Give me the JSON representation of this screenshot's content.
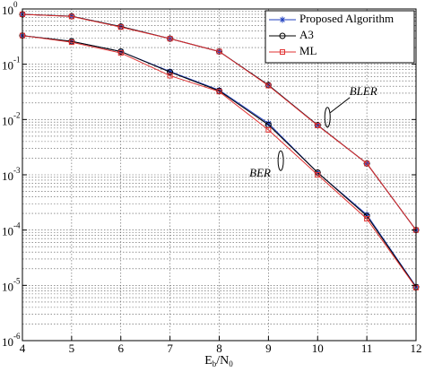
{
  "chart_data": {
    "type": "line",
    "log_y": true,
    "grid": true,
    "minor_grid": true,
    "legend_position": "upper right",
    "x_label": [
      "E",
      "b",
      "/N",
      "0"
    ],
    "x": [
      4,
      5,
      6,
      7,
      8,
      9,
      10,
      11,
      12
    ],
    "xlim": [
      4,
      12
    ],
    "xticks": [
      4,
      5,
      6,
      7,
      8,
      9,
      10,
      11,
      12
    ],
    "ylim": [
      1e-06,
      1
    ],
    "yticks": [
      {
        "value": 1e-06,
        "label": "10",
        "exponent": "-6"
      },
      {
        "value": 1e-05,
        "label": "10",
        "exponent": "-5"
      },
      {
        "value": 0.0001,
        "label": "10",
        "exponent": "-4"
      },
      {
        "value": 0.001,
        "label": "10",
        "exponent": "-3"
      },
      {
        "value": 0.01,
        "label": "10",
        "exponent": "-2"
      },
      {
        "value": 0.1,
        "label": "10",
        "exponent": "-1"
      },
      {
        "value": 1,
        "label": "10",
        "exponent": "0"
      }
    ],
    "series": [
      {
        "name": "Proposed Algorithm",
        "color": "#1f3fbf",
        "marker": "star",
        "values": [
          [
            0.8,
            0.74,
            0.48,
            0.29,
            0.17,
            0.042,
            0.0079,
            0.0016,
            0.0001
          ],
          [
            0.33,
            0.26,
            0.17,
            0.074,
            0.034,
            0.0085,
            0.0011,
            0.00019,
            9.5e-06
          ]
        ]
      },
      {
        "name": "A3",
        "color": "#000000",
        "marker": "circle",
        "values": [
          [
            0.8,
            0.74,
            0.48,
            0.29,
            0.17,
            0.042,
            0.0079,
            0.0016,
            0.0001
          ],
          [
            0.33,
            0.26,
            0.17,
            0.072,
            0.033,
            0.008,
            0.0011,
            0.00018,
            9.3e-06
          ]
        ]
      },
      {
        "name": "ML",
        "color": "#e03030",
        "marker": "square",
        "values": [
          [
            0.8,
            0.73,
            0.47,
            0.29,
            0.17,
            0.041,
            0.0078,
            0.0016,
            0.0001
          ],
          [
            0.33,
            0.25,
            0.16,
            0.062,
            0.032,
            0.0065,
            0.001,
            0.00016,
            9.1e-06
          ]
        ]
      }
    ],
    "annotations": [
      {
        "text": "BLER",
        "x": 10.2,
        "y": 0.011
      },
      {
        "text": "BER",
        "x": 9.25,
        "y": 0.0018
      }
    ]
  }
}
